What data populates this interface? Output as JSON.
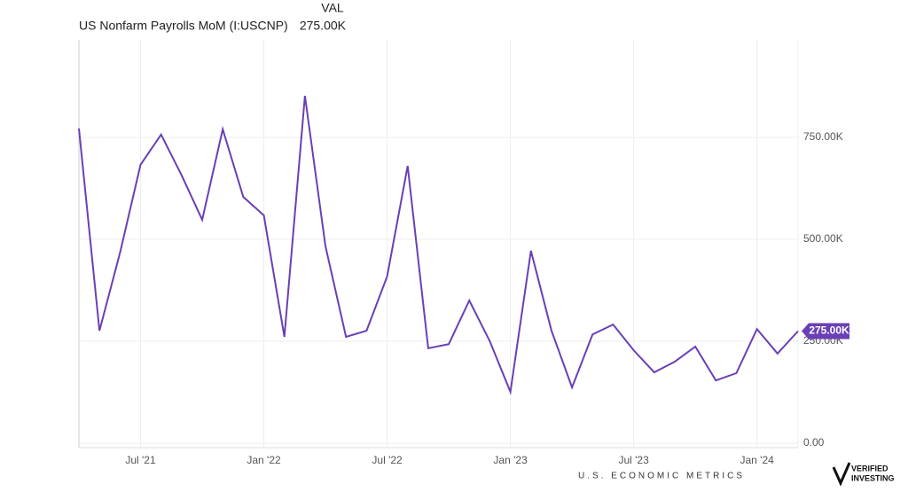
{
  "chart_data": {
    "type": "line",
    "legend": {
      "column_header": "VAL",
      "value": "275.00K"
    },
    "categories": [
      null,
      null,
      null,
      "Jul '21",
      null,
      null,
      null,
      null,
      null,
      "Jan '22",
      null,
      null,
      null,
      null,
      null,
      "Jul '22",
      null,
      null,
      null,
      null,
      null,
      "Jan '23",
      null,
      null,
      null,
      null,
      null,
      "Jul '23",
      null,
      null,
      null,
      null,
      null,
      "Jan '24",
      null,
      null
    ],
    "series": [
      {
        "name": "US Nonfarm Payrolls MoM (I:USCNP)",
        "color": "#6a3fb5",
        "values": [
          772000,
          276000,
          467000,
          683000,
          757000,
          657000,
          548000,
          770000,
          604000,
          559000,
          261000,
          852000,
          483000,
          261000,
          276000,
          409000,
          680000,
          233000,
          243000,
          350000,
          250000,
          126000,
          472000,
          276000,
          137000,
          267000,
          291000,
          228000,
          174000,
          200000,
          237000,
          154000,
          172000,
          280000,
          220000,
          275000
        ],
        "value_labels": [
          null,
          null,
          null,
          null,
          null,
          null,
          null,
          null,
          null,
          null,
          null,
          null,
          null,
          null,
          null,
          null,
          null,
          null,
          null,
          null,
          null,
          null,
          null,
          null,
          null,
          null,
          null,
          null,
          null,
          null,
          null,
          null,
          null,
          null,
          null,
          "275.00K"
        ]
      }
    ],
    "ylim": [
      0,
      1000000
    ],
    "yticks": [
      {
        "value": 0,
        "label": "0.00"
      },
      {
        "value": 250000,
        "label": "250.00K"
      },
      {
        "value": 500000,
        "label": "500.00K"
      },
      {
        "value": 750000,
        "label": "750.00K"
      }
    ],
    "grid": true
  },
  "footer": {
    "brand": "U.S. ECONOMIC METRICS",
    "logo_line1": "VERIFIED",
    "logo_line2": "INVESTING"
  }
}
